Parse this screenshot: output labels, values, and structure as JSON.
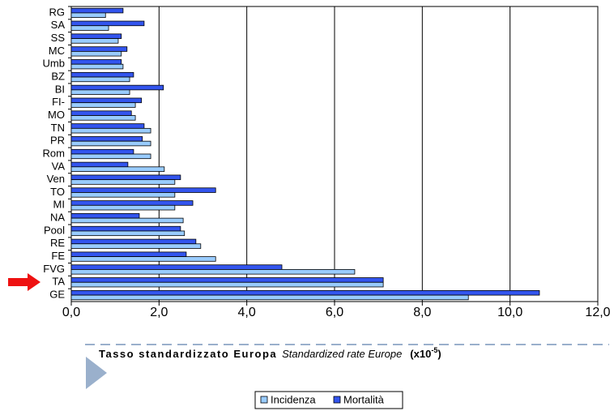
{
  "chart_data": {
    "type": "bar",
    "orientation": "horizontal",
    "categories": [
      "RG",
      "SA",
      "SS",
      "MC",
      "Umb",
      "BZ",
      "BI",
      "FI-",
      "MO",
      "TN",
      "PR",
      "Rom",
      "VA",
      "Ven",
      "TO",
      "MI",
      "NA",
      "Pool",
      "RE",
      "FE",
      "FVG",
      "TA",
      "GE"
    ],
    "series": [
      {
        "name": "Incidenza",
        "color": "#99ccff",
        "values": [
          0.78,
          0.85,
          1.07,
          1.14,
          1.18,
          1.33,
          1.33,
          1.46,
          1.46,
          1.81,
          1.81,
          1.81,
          2.12,
          2.36,
          2.36,
          2.36,
          2.55,
          2.58,
          2.95,
          3.29,
          6.46,
          7.11,
          9.05
        ]
      },
      {
        "name": "Mortalità",
        "color": "#3355ee",
        "values": [
          1.18,
          1.66,
          1.14,
          1.27,
          1.14,
          1.42,
          2.1,
          1.6,
          1.37,
          1.66,
          1.62,
          1.42,
          1.29,
          2.49,
          3.29,
          2.77,
          1.55,
          2.49,
          2.84,
          2.62,
          4.8,
          7.11,
          10.67
        ]
      }
    ],
    "xlim": [
      0,
      12
    ],
    "xticks": [
      {
        "value": 0,
        "label": "0,0"
      },
      {
        "value": 2,
        "label": "2,0"
      },
      {
        "value": 4,
        "label": "4,0"
      },
      {
        "value": 6,
        "label": "6,0"
      },
      {
        "value": 8,
        "label": "8,0"
      },
      {
        "value": 10,
        "label": "10,0"
      },
      {
        "value": 12,
        "label": "12,0"
      }
    ],
    "grid": true,
    "x_label": "Tasso standardizzato Europa",
    "x_label_en": "Standardized rate Europe",
    "x_label_unit": "(x10",
    "x_label_exp": "-5",
    "x_label_close": ")"
  }
}
